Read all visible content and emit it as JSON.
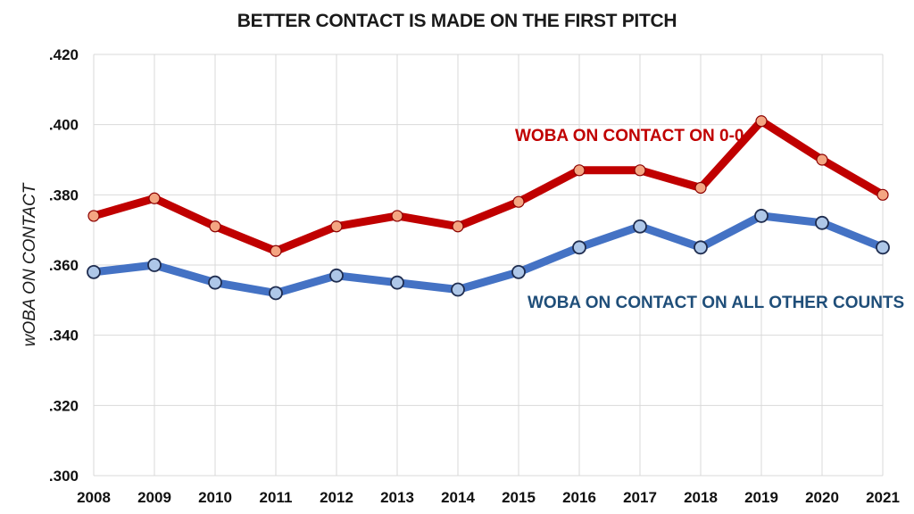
{
  "chart_data": {
    "type": "line",
    "title": "BETTER CONTACT IS MADE ON THE FIRST PITCH",
    "xlabel": "",
    "ylabel": "wOBA ON CONTACT",
    "x": [
      "2008",
      "2009",
      "2010",
      "2011",
      "2012",
      "2013",
      "2014",
      "2015",
      "2016",
      "2017",
      "2018",
      "2019",
      "2020",
      "2021"
    ],
    "ylim": [
      0.3,
      0.42
    ],
    "yticks": [
      ".300",
      ".320",
      ".340",
      ".360",
      ".380",
      ".400",
      ".420"
    ],
    "ytick_values": [
      0.3,
      0.32,
      0.34,
      0.36,
      0.38,
      0.4,
      0.42
    ],
    "grid": true,
    "series": [
      {
        "name": "WOBA ON CONTACT ON 0-0",
        "color": "#c00000",
        "marker_color": "#f4a582",
        "values": [
          0.374,
          0.379,
          0.371,
          0.364,
          0.371,
          0.374,
          0.371,
          0.378,
          0.387,
          0.387,
          0.382,
          0.401,
          0.39,
          0.38
        ]
      },
      {
        "name": "WOBA ON CONTACT ON ALL OTHER COUNTS",
        "color": "#4472c4",
        "label_color": "#1f4e79",
        "marker_color": "#aec7e8",
        "values": [
          0.358,
          0.36,
          0.355,
          0.352,
          0.357,
          0.355,
          0.353,
          0.358,
          0.365,
          0.371,
          0.365,
          0.374,
          0.372,
          0.365
        ]
      }
    ]
  }
}
